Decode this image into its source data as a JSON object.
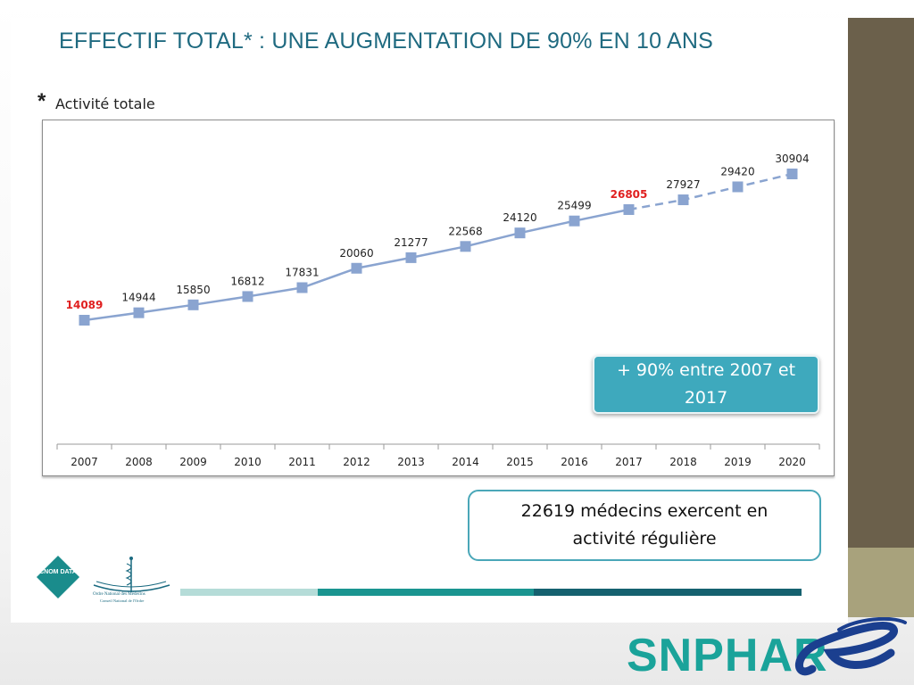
{
  "slide": {
    "title": "EFFECTIF TOTAL* : UNE AUGMENTATION DE 90% EN 10 ANS",
    "star": "*",
    "subtitle": "Activité totale"
  },
  "callouts": {
    "growth": "+ 90% entre 2007 et 2017",
    "regular": "22619 médecins  exercent en activité régulière"
  },
  "logos": {
    "cnom_data": "CNOM DATA",
    "ordre_line1": "Ordre National des Médecins",
    "ordre_line2": "Conseil National de l'Ordre",
    "snphar": "SNPHAR",
    "snphar_e": "e"
  },
  "colors": {
    "title": "#1f6a80",
    "series_line": "#8aa4d0",
    "series_marker": "#8aa4d0",
    "highlight_label": "#e02020",
    "callout_fill": "#3ea9bd",
    "callout_border": "#4aa7b8",
    "sidebar_dark": "#6b604b",
    "sidebar_light": "#a8a27c",
    "snphar_green": "#1aa39a",
    "snphar_blue": "#1b3f8f"
  },
  "chart_data": {
    "type": "line",
    "title": "",
    "xlabel": "",
    "ylabel": "",
    "categories": [
      "2007",
      "2008",
      "2009",
      "2010",
      "2011",
      "2012",
      "2013",
      "2014",
      "2015",
      "2016",
      "2017",
      "2018",
      "2019",
      "2020"
    ],
    "series": [
      {
        "values": [
          14089,
          14944,
          15850,
          16812,
          17831,
          20060,
          21277,
          22568,
          24120,
          25499,
          26805,
          27927,
          29420,
          30904
        ],
        "solid_until": "2017",
        "dashed_after": "2017"
      }
    ],
    "highlighted_labels": [
      "2007",
      "2017"
    ],
    "ylim": [
      9000,
      33000
    ],
    "grid": false,
    "legend": "none",
    "y_axis_visible": false
  }
}
